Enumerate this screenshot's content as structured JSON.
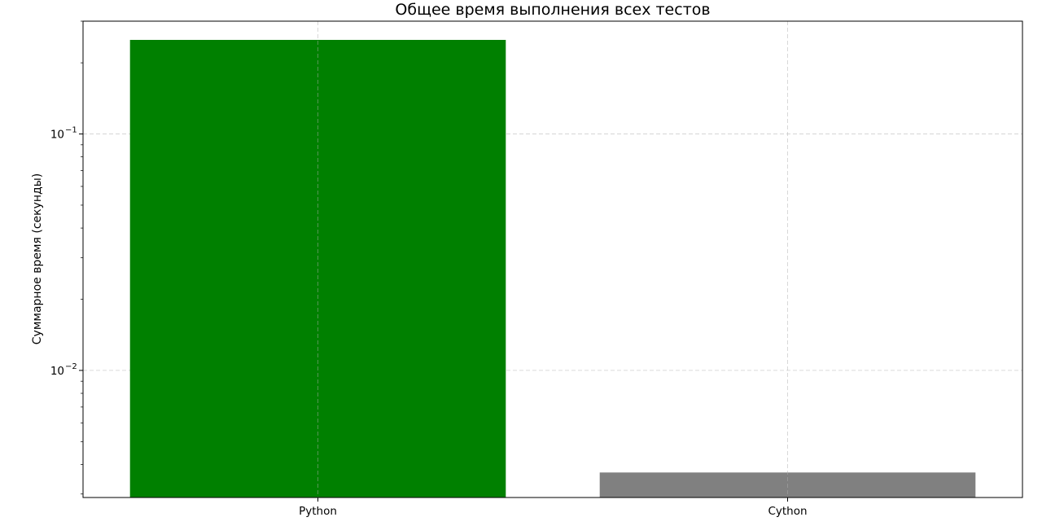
{
  "chart_data": {
    "type": "bar",
    "title": "Общее время выполнения всех тестов",
    "xlabel": "",
    "ylabel": "Суммарное время (секунды)",
    "yscale": "log",
    "ylim": [
      0.0029,
      0.3
    ],
    "grid": true,
    "categories": [
      "Python",
      "Cython"
    ],
    "values": [
      0.25,
      0.0037
    ],
    "bar_colors": [
      "#008000",
      "#808080"
    ],
    "y_major_ticks": [
      {
        "value": 0.1,
        "base": "10",
        "exponent": "−1"
      },
      {
        "value": 0.01,
        "base": "10",
        "exponent": "−2"
      }
    ],
    "y_minor_ticks": [
      0.003,
      0.004,
      0.005,
      0.006,
      0.007,
      0.008,
      0.009,
      0.02,
      0.03,
      0.04,
      0.05,
      0.06,
      0.07,
      0.08,
      0.09,
      0.2,
      0.3
    ]
  }
}
